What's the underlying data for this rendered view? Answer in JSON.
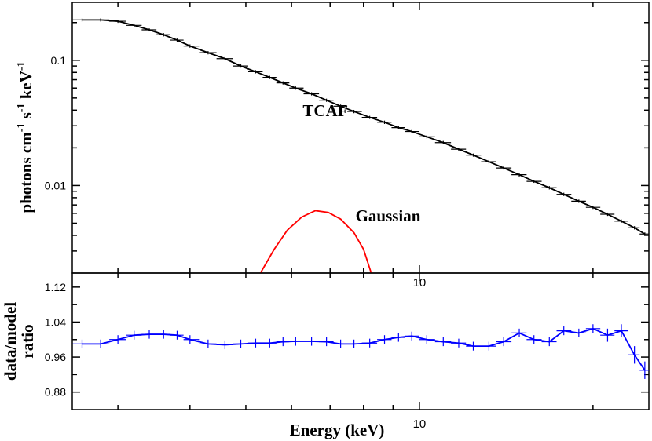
{
  "chart_data": [
    {
      "type": "line",
      "ylabel": [
        "photons cm",
        "-1",
        " s",
        "-1",
        " keV",
        "-1"
      ],
      "xscale": "log",
      "yscale": "log",
      "xlim": [
        2.5,
        25
      ],
      "xticks": [
        10
      ],
      "xminor": [
        3,
        4,
        5,
        6,
        7,
        8,
        9,
        20
      ],
      "ylim": [
        0.002,
        0.29
      ],
      "yticks": [
        0.1,
        0.01
      ],
      "yminor": [
        0.003,
        0.004,
        0.005,
        0.006,
        0.007,
        0.008,
        0.009,
        0.02,
        0.03,
        0.04,
        0.05,
        0.06,
        0.07,
        0.08,
        0.09,
        0.2
      ],
      "x": [
        2.6,
        2.8,
        3.0,
        3.2,
        3.4,
        3.6,
        3.8,
        4.0,
        4.3,
        4.6,
        4.9,
        5.2,
        5.5,
        5.8,
        6.1,
        6.5,
        6.9,
        7.3,
        7.7,
        8.2,
        8.7,
        9.2,
        9.7,
        10.3,
        11,
        11.7,
        12.4,
        13.2,
        14,
        14.9,
        15.8,
        16.8,
        17.8,
        18.9,
        20,
        21.2,
        22.4,
        23.6,
        24.6
      ],
      "series": [
        {
          "name": "TCAF",
          "color": "#000000",
          "values": [
            0.21,
            0.21,
            0.205,
            0.19,
            0.175,
            0.16,
            0.145,
            0.13,
            0.115,
            0.103,
            0.09,
            0.081,
            0.073,
            0.066,
            0.06,
            0.054,
            0.048,
            0.043,
            0.039,
            0.035,
            0.032,
            0.029,
            0.027,
            0.0245,
            0.022,
            0.0195,
            0.0175,
            0.0155,
            0.0138,
            0.0122,
            0.0108,
            0.0096,
            0.0085,
            0.0075,
            0.0067,
            0.0059,
            0.0052,
            0.0046,
            0.0041
          ],
          "yerr": [
            0.006,
            0.006,
            0.006,
            0.006,
            0.005,
            0.005,
            0.004,
            0.004,
            0.0035,
            0.003,
            0.0027,
            0.0024,
            0.0022,
            0.002,
            0.0018,
            0.0016,
            0.0014,
            0.0013,
            0.0012,
            0.001,
            0.001,
            0.0009,
            0.0008,
            0.0007,
            0.0007,
            0.0006,
            0.0005,
            0.0005,
            0.0004,
            0.0004,
            0.0003,
            0.0003,
            0.00026,
            0.00023,
            0.0002,
            0.00018,
            0.00016,
            0.00014,
            0.00012
          ]
        },
        {
          "name": "Gaussian",
          "color": "#ff0000",
          "x": [
            5.3,
            5.6,
            5.9,
            6.25,
            6.6,
            6.95,
            7.3,
            7.7,
            8.0,
            8.25
          ],
          "values": [
            0.002,
            0.0031,
            0.0044,
            0.0056,
            0.0063,
            0.0061,
            0.0054,
            0.0042,
            0.0031,
            0.002
          ]
        }
      ]
    },
    {
      "type": "line",
      "ylabel": [
        "data/model",
        "ratio"
      ],
      "xlabel": "Energy (keV)",
      "xscale": "log",
      "xlim": [
        2.5,
        25
      ],
      "xticks": [
        10
      ],
      "xminor": [
        3,
        4,
        5,
        6,
        7,
        8,
        9,
        20
      ],
      "ylim": [
        0.84,
        1.152
      ],
      "yticks": [
        0.88,
        0.96,
        1.04,
        1.12
      ],
      "yminor": [
        0.92,
        1.0,
        1.08
      ],
      "x": [
        2.6,
        2.8,
        3.0,
        3.2,
        3.4,
        3.6,
        3.8,
        4.0,
        4.3,
        4.6,
        4.9,
        5.2,
        5.5,
        5.8,
        6.1,
        6.5,
        6.9,
        7.3,
        7.7,
        8.2,
        8.7,
        9.2,
        9.7,
        10.3,
        11,
        11.7,
        12.4,
        13.2,
        14,
        14.9,
        15.8,
        16.8,
        17.8,
        18.9,
        20,
        21.2,
        22.4,
        23.6,
        24.6
      ],
      "series": [
        {
          "name": "data/model",
          "color": "#0000ff",
          "values": [
            0.99,
            0.99,
            1.0,
            1.01,
            1.012,
            1.012,
            1.01,
            1.0,
            0.99,
            0.988,
            0.99,
            0.992,
            0.992,
            0.995,
            0.996,
            0.996,
            0.995,
            0.99,
            0.99,
            0.992,
            1.0,
            1.005,
            1.008,
            1.0,
            0.995,
            0.992,
            0.985,
            0.985,
            0.995,
            1.015,
            1.0,
            0.995,
            1.02,
            1.015,
            1.025,
            1.01,
            1.02,
            0.965,
            0.93
          ],
          "yerr": [
            0.01,
            0.01,
            0.01,
            0.01,
            0.01,
            0.01,
            0.01,
            0.01,
            0.01,
            0.01,
            0.01,
            0.01,
            0.01,
            0.01,
            0.01,
            0.01,
            0.01,
            0.01,
            0.01,
            0.01,
            0.01,
            0.01,
            0.01,
            0.01,
            0.01,
            0.01,
            0.01,
            0.01,
            0.01,
            0.01,
            0.01,
            0.01,
            0.01,
            0.01,
            0.01,
            0.015,
            0.015,
            0.02,
            0.02
          ]
        }
      ]
    }
  ]
}
